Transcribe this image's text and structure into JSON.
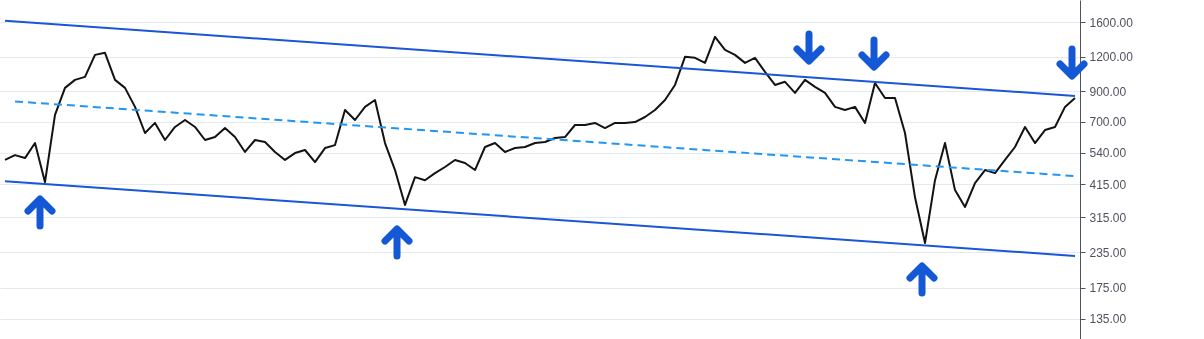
{
  "chart_data": {
    "type": "line",
    "categories": [
      null,
      null,
      null,
      null,
      null,
      null,
      null,
      null,
      null,
      null,
      null,
      null,
      null,
      null,
      null,
      null,
      null,
      null,
      null,
      null,
      null,
      null,
      null,
      null,
      null,
      null,
      null,
      null,
      null,
      null,
      null,
      null,
      null,
      null,
      null,
      null,
      null,
      null,
      null,
      null,
      null,
      null,
      null,
      null,
      null,
      null,
      null,
      null,
      null,
      null,
      null,
      null,
      null,
      null,
      null,
      null,
      null,
      null,
      null,
      null,
      null,
      null,
      null,
      null,
      null,
      null,
      null,
      null,
      null,
      null,
      null,
      null,
      null,
      null,
      null,
      null,
      null,
      null,
      null,
      null,
      null,
      null,
      null,
      null,
      null,
      null,
      null,
      null,
      null,
      null,
      null,
      null,
      null,
      null,
      null,
      null,
      null,
      null,
      null,
      null,
      null,
      null,
      null,
      null,
      null,
      null,
      null,
      null
    ],
    "series": [
      {
        "color": "#131313",
        "values": [
          508,
          529,
          516,
          585,
          422,
          740,
          927,
          991,
          1016,
          1221,
          1242,
          991,
          927,
          791,
          636,
          692,
          600,
          669,
          709,
          669,
          600,
          615,
          663,
          615,
          543,
          600,
          590,
          543,
          508,
          538,
          552,
          499,
          561,
          575,
          771,
          709,
          791,
          838,
          585,
          467,
          349,
          440,
          429,
          455,
          479,
          508,
          495,
          467,
          566,
          585,
          543,
          561,
          566,
          585,
          590,
          610,
          615,
          680,
          680,
          692,
          663,
          692,
          692,
          697,
          727,
          771,
          838,
          950,
          1201,
          1191,
          1142,
          1420,
          1273,
          1221,
          1142,
          1191,
          1060,
          950,
          975,
          889,
          991,
          935,
          889,
          791,
          771,
          791,
          692,
          966,
          852,
          852,
          636,
          372,
          254,
          429,
          585,
          395,
          343,
          419,
          467,
          455,
          508,
          566,
          669,
          585,
          652,
          669,
          791,
          852
        ]
      },
      {
        "color": "#1a56d6",
        "values": [
          1622,
          null,
          null,
          null,
          null,
          null,
          null,
          null,
          null,
          null,
          null,
          null,
          null,
          null,
          null,
          null,
          null,
          null,
          null,
          null,
          null,
          null,
          null,
          null,
          null,
          null,
          null,
          null,
          null,
          null,
          null,
          null,
          null,
          null,
          null,
          null,
          null,
          null,
          null,
          null,
          null,
          null,
          null,
          null,
          null,
          null,
          null,
          null,
          null,
          null,
          null,
          null,
          null,
          null,
          null,
          null,
          null,
          null,
          null,
          null,
          null,
          null,
          null,
          null,
          null,
          null,
          null,
          null,
          null,
          null,
          null,
          null,
          null,
          null,
          null,
          null,
          null,
          null,
          null,
          null,
          null,
          null,
          null,
          null,
          null,
          null,
          null,
          null,
          null,
          null,
          null,
          null,
          null,
          null,
          null,
          null,
          null,
          null,
          null,
          null,
          null,
          null,
          null,
          null,
          null,
          null,
          null,
          867
        ]
      },
      {
        "color": "#1a56d6",
        "values": [
          425,
          null,
          null,
          null,
          null,
          null,
          null,
          null,
          null,
          null,
          null,
          null,
          null,
          null,
          null,
          null,
          null,
          null,
          null,
          null,
          null,
          null,
          null,
          null,
          null,
          null,
          null,
          null,
          null,
          null,
          null,
          null,
          null,
          null,
          null,
          null,
          null,
          null,
          null,
          null,
          null,
          null,
          null,
          null,
          null,
          null,
          null,
          null,
          null,
          null,
          null,
          null,
          null,
          null,
          null,
          null,
          null,
          null,
          null,
          null,
          null,
          null,
          null,
          null,
          null,
          null,
          null,
          null,
          null,
          null,
          null,
          null,
          null,
          null,
          null,
          null,
          null,
          null,
          null,
          null,
          null,
          null,
          null,
          null,
          null,
          null,
          null,
          null,
          null,
          null,
          null,
          null,
          null,
          null,
          null,
          null,
          null,
          null,
          null,
          null,
          null,
          null,
          null,
          null,
          null,
          null,
          null,
          228
        ]
      },
      {
        "color": "#2196f3",
        "line_style": "dashed",
        "values": [
          null,
          828,
          null,
          null,
          null,
          null,
          null,
          null,
          null,
          null,
          null,
          null,
          null,
          null,
          null,
          null,
          null,
          null,
          null,
          null,
          null,
          null,
          null,
          null,
          null,
          null,
          null,
          null,
          null,
          null,
          null,
          null,
          null,
          null,
          null,
          null,
          null,
          null,
          null,
          null,
          null,
          null,
          null,
          null,
          null,
          null,
          null,
          null,
          null,
          null,
          null,
          null,
          null,
          null,
          null,
          null,
          null,
          null,
          null,
          null,
          null,
          null,
          null,
          null,
          null,
          null,
          null,
          null,
          null,
          null,
          null,
          null,
          null,
          null,
          null,
          null,
          null,
          null,
          null,
          null,
          null,
          null,
          null,
          null,
          null,
          null,
          null,
          null,
          null,
          null,
          null,
          null,
          null,
          null,
          null,
          null,
          null,
          null,
          null,
          null,
          null,
          null,
          null,
          null,
          null,
          null,
          null,
          444
        ]
      }
    ],
    "log": true,
    "ylim": [
      114,
      1930
    ],
    "yticks": [
      {
        "value": 135,
        "label": "135.00"
      },
      {
        "value": 175,
        "label": "175.00"
      },
      {
        "value": 235,
        "label": "235.00"
      },
      {
        "value": 315,
        "label": "315.00"
      },
      {
        "value": 415,
        "label": "415.00"
      },
      {
        "value": 540,
        "label": "540.00"
      },
      {
        "value": 700,
        "label": "700.00"
      },
      {
        "value": 900,
        "label": "900.00"
      },
      {
        "value": 1200,
        "label": "1200.00"
      },
      {
        "value": 1600,
        "label": "1600.00"
      }
    ],
    "grid": "y",
    "tick_labels": "y"
  }
}
